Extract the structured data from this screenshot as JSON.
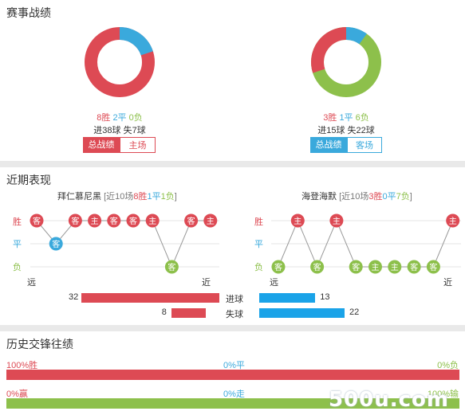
{
  "section1": {
    "title": "赛事战绩",
    "left": {
      "win": "8胜",
      "draw": "2平",
      "loss": "0负",
      "goals": "进38球",
      "conceded": "失7球",
      "tab_all": "总战绩",
      "tab_home": "主场",
      "donut": {
        "win": 8,
        "draw": 2,
        "loss": 0
      }
    },
    "right": {
      "win": "3胜",
      "draw": "1平",
      "loss": "6负",
      "goals": "进15球",
      "conceded": "失22球",
      "tab_all": "总战绩",
      "tab_away": "客场",
      "donut": {
        "win": 3,
        "draw": 1,
        "loss": 6
      }
    }
  },
  "section2": {
    "title": "近期表现",
    "left": {
      "team": "拜仁慕尼黑",
      "summary_prefix": "[近10场",
      "w": "8胜",
      "d": "1平",
      "l": "1负",
      "summary_suffix": "]",
      "results": [
        "W",
        "D",
        "W",
        "W",
        "W",
        "W",
        "W",
        "L",
        "W",
        "W"
      ],
      "venues": [
        "客",
        "客",
        "客",
        "主",
        "客",
        "客",
        "主",
        "客",
        "客",
        "主"
      ]
    },
    "right": {
      "team": "海登海默",
      "summary_prefix": "[近10场",
      "w": "3胜",
      "d": "0平",
      "l": "7负",
      "summary_suffix": "]",
      "results": [
        "L",
        "W",
        "L",
        "W",
        "L",
        "L",
        "L",
        "L",
        "L",
        "W"
      ],
      "venues": [
        "客",
        "主",
        "客",
        "主",
        "客",
        "主",
        "主",
        "客",
        "客",
        "主"
      ]
    },
    "ylabels": {
      "win": "胜",
      "draw": "平",
      "loss": "负"
    },
    "far": "远",
    "near": "近",
    "goals_label": "进球",
    "conceded_label": "失球",
    "bars": {
      "left_goals": 32,
      "left_conceded": 8,
      "right_goals": 13,
      "right_conceded": 22
    }
  },
  "section3": {
    "title": "历史交锋往绩",
    "row1": {
      "left": "100%胜",
      "mid": "0%平",
      "right": "0%负",
      "value": 100
    },
    "row2": {
      "left": "0%赢",
      "mid": "0%走",
      "right": "100%输",
      "value": 100
    }
  },
  "watermark": "500u.com",
  "colors": {
    "red": "#dd4a54",
    "blue": "#3aa9dc",
    "green": "#8dc04b",
    "gridline": "#e5e5e5"
  }
}
